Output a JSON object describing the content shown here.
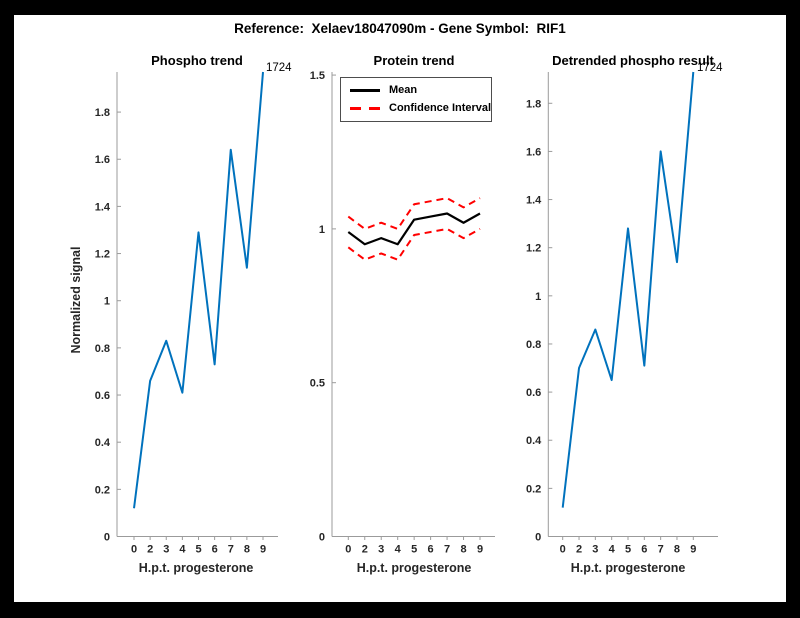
{
  "header": {
    "title": "Reference:  Xelaev18047090m - Gene Symbol:  RIF1"
  },
  "colors": {
    "line_blue": "#0072BD",
    "ci_red": "#FF0000",
    "mean_black": "#000000",
    "axis_gray": "#9b9b9b",
    "tick_text": "#262626",
    "figure_bg": "#ffffff",
    "frame_bg": "#000000"
  },
  "chart_data": [
    {
      "type": "line",
      "title": "Phospho trend",
      "xlabel": "H.p.t. progesterone",
      "ylabel": "Normalized signal",
      "x_ticklabels": [
        "0",
        "2",
        "3",
        "4",
        "5",
        "6",
        "7",
        "8",
        "9"
      ],
      "ytick_values": [
        0,
        0.2,
        0.4,
        0.6,
        0.8,
        1,
        1.2,
        1.4,
        1.6,
        1.8
      ],
      "ytick_labels": [
        "0",
        "0.2",
        "0.4",
        "0.6",
        "0.8",
        "1",
        "1.2",
        "1.4",
        "1.6",
        "1.8"
      ],
      "ylim": [
        0,
        1.97
      ],
      "grid": false,
      "legend": null,
      "annotation": {
        "text": "1724",
        "position": "end-of-line"
      },
      "series": [
        {
          "name": "phospho-signal",
          "color": "#0072BD",
          "style": "solid",
          "values": [
            0.12,
            0.66,
            0.83,
            0.61,
            1.29,
            0.73,
            1.64,
            1.14,
            1.97
          ]
        }
      ]
    },
    {
      "type": "line",
      "title": "Protein trend",
      "xlabel": "H.p.t. progesterone",
      "ylabel": "",
      "x_ticklabels": [
        "0",
        "2",
        "3",
        "4",
        "5",
        "6",
        "7",
        "8",
        "9"
      ],
      "ytick_values": [
        0,
        0.5,
        1,
        1.5
      ],
      "ytick_labels": [
        "0",
        "0.5",
        "1",
        "1.5"
      ],
      "ylim": [
        0,
        1.51
      ],
      "grid": false,
      "legend": {
        "position": "northwest",
        "entries": [
          {
            "label": "Mean",
            "color": "#000000",
            "style": "solid"
          },
          {
            "label": "Confidence Interval",
            "color": "#FF0000",
            "style": "dashed"
          }
        ]
      },
      "annotation": null,
      "series": [
        {
          "name": "mean",
          "color": "#000000",
          "style": "solid",
          "values": [
            0.99,
            0.95,
            0.97,
            0.95,
            1.03,
            1.04,
            1.05,
            1.02,
            1.05
          ]
        },
        {
          "name": "confidence-upper",
          "color": "#FF0000",
          "style": "dashed",
          "values": [
            1.04,
            1.0,
            1.02,
            1.0,
            1.08,
            1.09,
            1.1,
            1.07,
            1.1
          ]
        },
        {
          "name": "confidence-lower",
          "color": "#FF0000",
          "style": "dashed",
          "values": [
            0.94,
            0.9,
            0.92,
            0.9,
            0.98,
            0.99,
            1.0,
            0.97,
            1.0
          ]
        }
      ]
    },
    {
      "type": "line",
      "title": "Detrended phospho result",
      "xlabel": "H.p.t. progesterone",
      "ylabel": "",
      "x_ticklabels": [
        "0",
        "2",
        "3",
        "4",
        "5",
        "6",
        "7",
        "8",
        "9"
      ],
      "ytick_values": [
        0,
        0.2,
        0.4,
        0.6,
        0.8,
        1,
        1.2,
        1.4,
        1.6,
        1.8
      ],
      "ytick_labels": [
        "0",
        "0.2",
        "0.4",
        "0.6",
        "0.8",
        "1",
        "1.2",
        "1.4",
        "1.6",
        "1.8"
      ],
      "ylim": [
        0,
        1.93
      ],
      "grid": false,
      "legend": null,
      "annotation": {
        "text": "1724",
        "position": "end-of-line"
      },
      "series": [
        {
          "name": "detrended-phospho",
          "color": "#0072BD",
          "style": "solid",
          "values": [
            0.12,
            0.7,
            0.86,
            0.65,
            1.28,
            0.71,
            1.6,
            1.14,
            1.93
          ]
        }
      ]
    }
  ]
}
